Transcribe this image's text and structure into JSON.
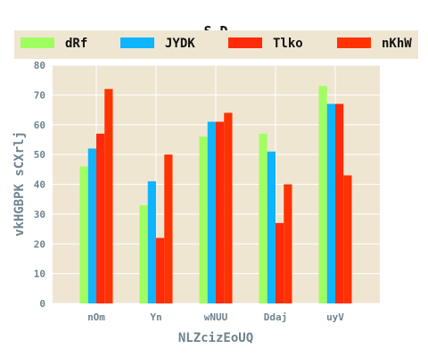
{
  "chart_data": {
    "type": "bar",
    "title": "S D",
    "xlabel": "NLZcizEoUQ",
    "ylabel": "vkHGBPK sCXrlj",
    "categories": [
      "nOm",
      "Yn",
      "wNUU",
      "Ddaj",
      "uyV"
    ],
    "series": [
      {
        "name": "dRf",
        "color": "#a0ff60",
        "values": [
          46,
          33,
          56,
          57,
          73
        ]
      },
      {
        "name": "JYDK",
        "color": "#0fb4ff",
        "values": [
          52,
          41,
          61,
          51,
          67
        ]
      },
      {
        "name": "Tlko",
        "color": "#ff2a0a",
        "values": [
          57,
          22,
          61,
          27,
          67
        ]
      },
      {
        "name": "nKhW",
        "color": "#ff3300",
        "values": [
          72,
          50,
          64,
          40,
          43
        ]
      }
    ],
    "ylim": [
      0,
      80
    ],
    "yticks": [
      0,
      10,
      20,
      30,
      40,
      50,
      60,
      70,
      80
    ],
    "grid": true,
    "legend_position": "top"
  },
  "colors": {
    "plot_background": "#efe6d2",
    "grid": "#ffffff",
    "tick_text": "#6f8390"
  }
}
